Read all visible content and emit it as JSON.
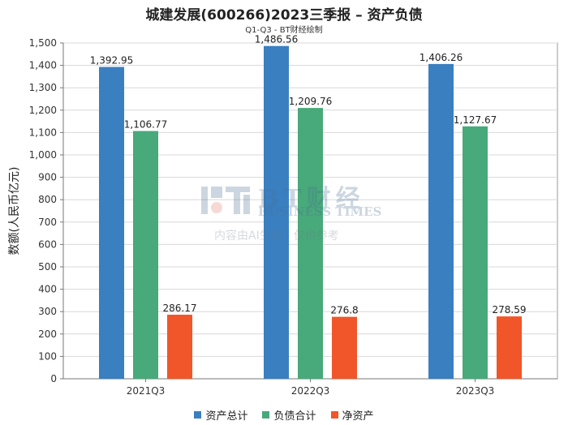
{
  "chart_data": {
    "type": "bar",
    "title": "城建发展(600266)2023三季报 – 资产负债",
    "subtitle": "Q1-Q3 - BT财经绘制",
    "ylabel": "数额(人民币亿元)",
    "xlabel": "",
    "categories": [
      "2021Q3",
      "2022Q3",
      "2023Q3"
    ],
    "ylim": [
      0,
      1500
    ],
    "yticks": [
      0,
      100,
      200,
      300,
      400,
      500,
      600,
      700,
      800,
      900,
      1000,
      1100,
      1200,
      1300,
      1400,
      1500
    ],
    "grid": true,
    "legend_position": "bottom",
    "series": [
      {
        "name": "资产总计",
        "color": "#3a7fc0",
        "values": [
          1392.95,
          1486.56,
          1406.26
        ],
        "labels": [
          "1,392.95",
          "1,486.56",
          "1,406.26"
        ]
      },
      {
        "name": "负债合计",
        "color": "#48a97a",
        "values": [
          1106.77,
          1209.76,
          1127.67
        ],
        "labels": [
          "1,106.77",
          "1,209.76",
          "1,127.67"
        ]
      },
      {
        "name": "净资产",
        "color": "#f0562a",
        "values": [
          286.17,
          276.8,
          278.59
        ],
        "labels": [
          "286.17",
          "276.8",
          "278.59"
        ]
      }
    ]
  },
  "watermark": {
    "brand": "BT财经",
    "english": "BUSINESS TIMES",
    "note": "内容由AI生成，仅供参考"
  }
}
